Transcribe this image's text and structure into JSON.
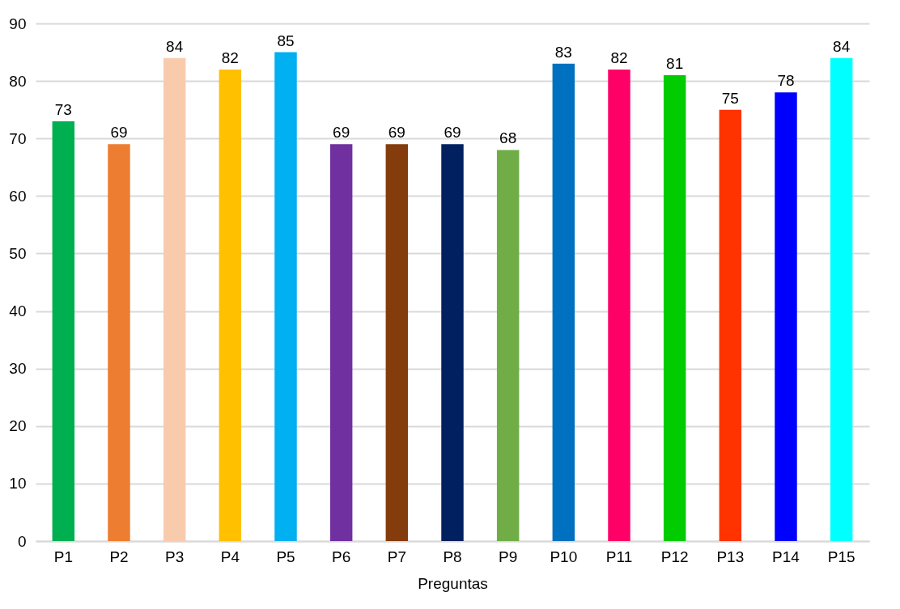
{
  "chart_data": {
    "type": "bar",
    "xlabel": "Preguntas",
    "categories": [
      "P1",
      "P2",
      "P3",
      "P4",
      "P5",
      "P6",
      "P7",
      "P8",
      "P9",
      "P10",
      "P11",
      "P12",
      "P13",
      "P14",
      "P15"
    ],
    "values": [
      73,
      69,
      84,
      82,
      85,
      69,
      69,
      69,
      68,
      83,
      82,
      81,
      75,
      78,
      84
    ],
    "colors": [
      "#00b050",
      "#ed7d31",
      "#f8cbad",
      "#ffc000",
      "#00b0f0",
      "#7030a0",
      "#843c0c",
      "#002060",
      "#70ad47",
      "#0070c0",
      "#ff0066",
      "#00cc00",
      "#ff3300",
      "#0000ff",
      "#00ffff"
    ],
    "ylim": [
      0,
      90
    ],
    "yticks": [
      0,
      10,
      20,
      30,
      40,
      50,
      60,
      70,
      80,
      90
    ],
    "grid": "y",
    "data_labels": true
  }
}
